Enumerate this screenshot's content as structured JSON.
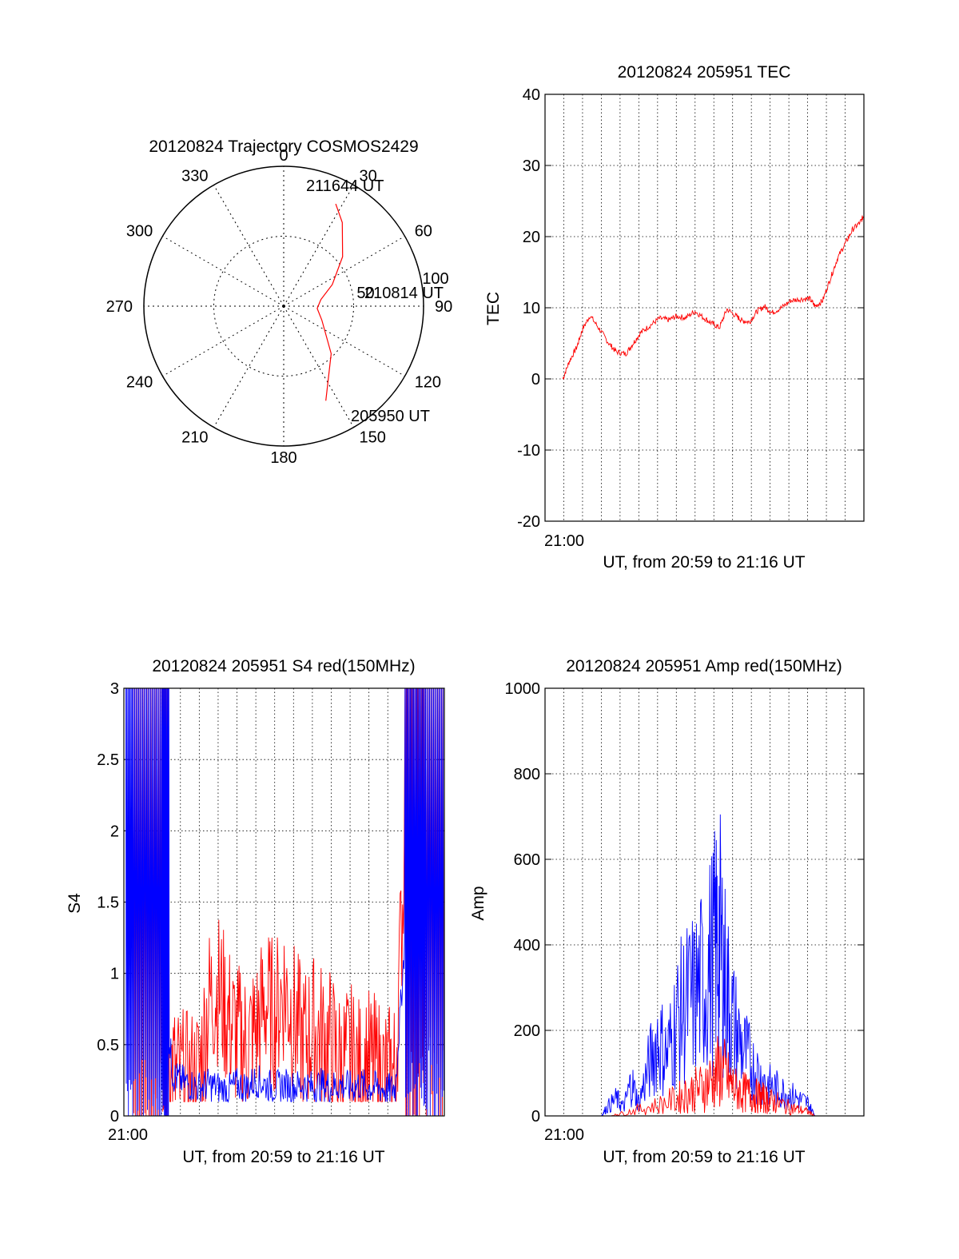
{
  "chart_data": [
    {
      "type": "polar",
      "title": "20120824 Trajectory COSMOS2429",
      "angle_labels": [
        "0",
        "30",
        "60",
        "90",
        "120",
        "150",
        "180",
        "210",
        "240",
        "270",
        "300",
        "330"
      ],
      "radial_labels": [
        "50",
        "100"
      ],
      "annotations": [
        "211644 UT",
        "210814 UT",
        "205950 UT"
      ],
      "series": [
        {
          "color": "#ff0000",
          "points": [
            [
              156,
              74
            ],
            [
              135,
              48
            ],
            [
              110,
              29
            ],
            [
              94,
              24
            ],
            [
              80,
              27
            ],
            [
              66,
              38
            ],
            [
              50,
              55
            ],
            [
              35,
              73
            ],
            [
              27,
              82
            ]
          ]
        }
      ]
    },
    {
      "type": "line",
      "title": "20120824 205951 TEC",
      "xlabel": "UT, from 20:59 to 21:16 UT",
      "xtick_labels": [
        "21:00"
      ],
      "ylabel": "TEC",
      "xlim": [
        0,
        17
      ],
      "ylim": [
        -20,
        40
      ],
      "yticks": [
        -20,
        -10,
        0,
        10,
        20,
        30,
        40
      ],
      "series": [
        {
          "color": "#ff0000",
          "x": [
            0.95,
            1.3,
            1.7,
            2.0,
            2.4,
            2.9,
            3.4,
            3.8,
            4.3,
            4.7,
            5.1,
            5.6,
            6.1,
            6.6,
            7.0,
            7.5,
            8.0,
            8.5,
            8.9,
            9.3,
            9.7,
            10.2,
            10.5,
            10.9,
            11.3,
            11.7,
            12.1,
            12.6,
            13.1,
            13.6,
            14.1,
            14.4,
            14.8,
            15.2,
            15.6,
            16.0,
            16.4,
            16.8,
            17.0
          ],
          "y": [
            0,
            2.5,
            4.5,
            7,
            8.9,
            7,
            5,
            3.8,
            3.5,
            5,
            6.5,
            7.5,
            8.5,
            8.3,
            8.8,
            8.6,
            9.5,
            8.5,
            7.8,
            7.2,
            9.8,
            8.8,
            8.2,
            8.0,
            9.5,
            10.2,
            9.3,
            10.0,
            11.0,
            11.2,
            11.3,
            10.2,
            11.0,
            14.0,
            17.0,
            19.0,
            21.0,
            22.0,
            23.0
          ]
        }
      ]
    },
    {
      "type": "line",
      "title": "20120824 205951 S4 red(150MHz)",
      "xlabel": "UT, from 20:59 to 21:16 UT",
      "xtick_labels": [
        "21:00"
      ],
      "ylabel": "S4",
      "xlim": [
        0,
        17
      ],
      "ylim": [
        0,
        3
      ],
      "yticks": [
        0,
        0.5,
        1,
        1.5,
        2,
        2.5,
        3
      ],
      "yticklabels": [
        "0",
        "0.5",
        "1",
        "1.5",
        "2",
        "2.5",
        "3"
      ],
      "series": [
        {
          "color": "#ff0000",
          "x": [
            0.5,
            1.0,
            1.5,
            2.0,
            2.3,
            2.8,
            3.4,
            4.0,
            4.5,
            5.0,
            5.5,
            6.0,
            6.5,
            7.0,
            7.5,
            8.0,
            8.5,
            9.0,
            9.5,
            10.0,
            10.5,
            11.0,
            11.5,
            12.0,
            12.5,
            13.0,
            13.5,
            14.0,
            14.4,
            15.0,
            15.5,
            16.0,
            16.5,
            17.0
          ],
          "y": [
            2.0,
            2.2,
            1.9,
            2.3,
            0.4,
            0.25,
            0.2,
            0.3,
            0.8,
            0.9,
            0.7,
            0.55,
            0.5,
            0.6,
            0.8,
            0.7,
            0.9,
            0.7,
            0.5,
            0.6,
            0.55,
            0.5,
            0.35,
            0.4,
            0.3,
            0.35,
            0.3,
            0.25,
            0.3,
            2.2,
            2.4,
            2.6,
            2.5,
            2.5
          ]
        },
        {
          "color": "#0000ff",
          "x": [
            0.1,
            0.5,
            1.0,
            1.5,
            2.0,
            2.3,
            2.6,
            3.0,
            3.5,
            4.0,
            4.5,
            5.0,
            5.5,
            6.0,
            6.5,
            7.0,
            7.5,
            8.0,
            8.5,
            9.0,
            9.5,
            10.0,
            10.5,
            11.0,
            11.5,
            12.0,
            12.5,
            13.0,
            13.5,
            14.0,
            14.4,
            14.8,
            15.2,
            15.6,
            16.0,
            16.5,
            17.0
          ],
          "y": [
            2.0,
            1.9,
            2.2,
            1.8,
            1.6,
            0.7,
            0.28,
            0.25,
            0.22,
            0.2,
            0.22,
            0.2,
            0.18,
            0.22,
            0.2,
            0.25,
            0.22,
            0.2,
            0.22,
            0.2,
            0.22,
            0.2,
            0.22,
            0.2,
            0.22,
            0.2,
            0.22,
            0.2,
            0.2,
            0.18,
            0.2,
            1.0,
            2.0,
            2.3,
            2.1,
            2.4,
            2.5
          ]
        }
      ]
    },
    {
      "type": "line",
      "title": "20120824 205951 Amp red(150MHz)",
      "xlabel": "UT, from 20:59 to 21:16 UT",
      "xtick_labels": [
        "21:00"
      ],
      "ylabel": "Amp",
      "xlim": [
        0,
        17
      ],
      "ylim": [
        0,
        1000
      ],
      "yticks": [
        0,
        200,
        400,
        600,
        800,
        1000
      ],
      "series": [
        {
          "color": "#0000ff",
          "x": [
            0.0,
            1.0,
            2.0,
            3.0,
            3.3,
            3.8,
            4.2,
            4.6,
            5.0,
            5.5,
            6.0,
            6.5,
            7.0,
            7.5,
            8.0,
            8.5,
            9.0,
            9.3,
            9.6,
            10.0,
            10.5,
            11.0,
            11.5,
            12.0,
            12.5,
            13.0,
            13.5,
            14.0,
            14.4,
            15.0,
            16.0,
            17.0
          ],
          "y": [
            0,
            0,
            0,
            0,
            20,
            40,
            20,
            80,
            30,
            110,
            180,
            140,
            220,
            260,
            280,
            320,
            380,
            420,
            320,
            220,
            160,
            120,
            90,
            70,
            60,
            50,
            40,
            30,
            0,
            0,
            0,
            0
          ]
        },
        {
          "color": "#ff0000",
          "x": [
            0.0,
            2.0,
            3.5,
            4.0,
            5.0,
            6.0,
            7.0,
            7.5,
            8.0,
            8.5,
            9.0,
            9.4,
            9.8,
            10.2,
            10.6,
            11.0,
            11.4,
            11.7,
            12.0,
            12.4,
            13.0,
            13.5,
            14.0,
            14.4,
            15.0,
            17.0
          ],
          "y": [
            0,
            0,
            0,
            5,
            15,
            25,
            40,
            50,
            60,
            70,
            90,
            110,
            80,
            60,
            55,
            50,
            45,
            40,
            35,
            30,
            20,
            15,
            10,
            0,
            0,
            0
          ]
        }
      ]
    }
  ]
}
